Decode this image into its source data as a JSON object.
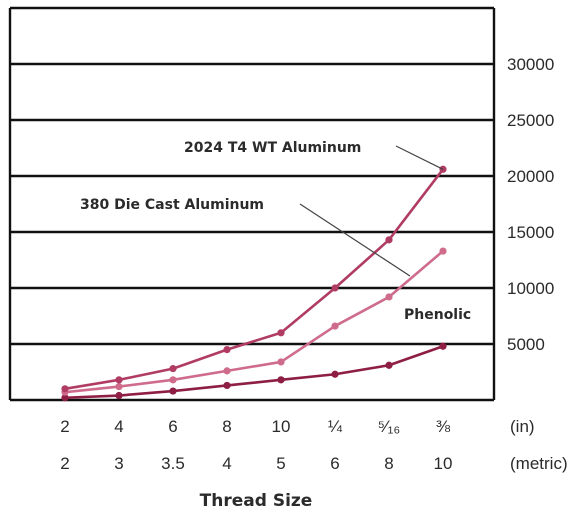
{
  "chart_data": {
    "type": "line",
    "title": "",
    "xlabel": "Thread Size",
    "ylabel": "",
    "categories": [
      "2",
      "4",
      "6",
      "8",
      "10",
      "¼",
      "⁵⁄₁₆",
      "⅜"
    ],
    "categories_metric": [
      "2",
      "3",
      "3.5",
      "4",
      "5",
      "6",
      "8",
      "10"
    ],
    "units_labels": [
      "(in)",
      "(metric)"
    ],
    "y_ticks": [
      5000,
      10000,
      15000,
      20000,
      25000,
      30000
    ],
    "ylim": [
      0,
      35000
    ],
    "grid": true,
    "series": [
      {
        "name": "2024 T4 WT Aluminum",
        "values": [
          1000,
          1800,
          2800,
          4500,
          6000,
          10000,
          14300,
          20600
        ],
        "color": "#b03c63"
      },
      {
        "name": "380 Die Cast Aluminum",
        "values": [
          700,
          1200,
          1800,
          2600,
          3400,
          6600,
          9200,
          13300
        ],
        "color": "#cf6c8c"
      },
      {
        "name": "Phenolic",
        "values": [
          200,
          400,
          800,
          1300,
          1800,
          2300,
          3100,
          4800
        ],
        "color": "#8e1e44"
      }
    ]
  }
}
